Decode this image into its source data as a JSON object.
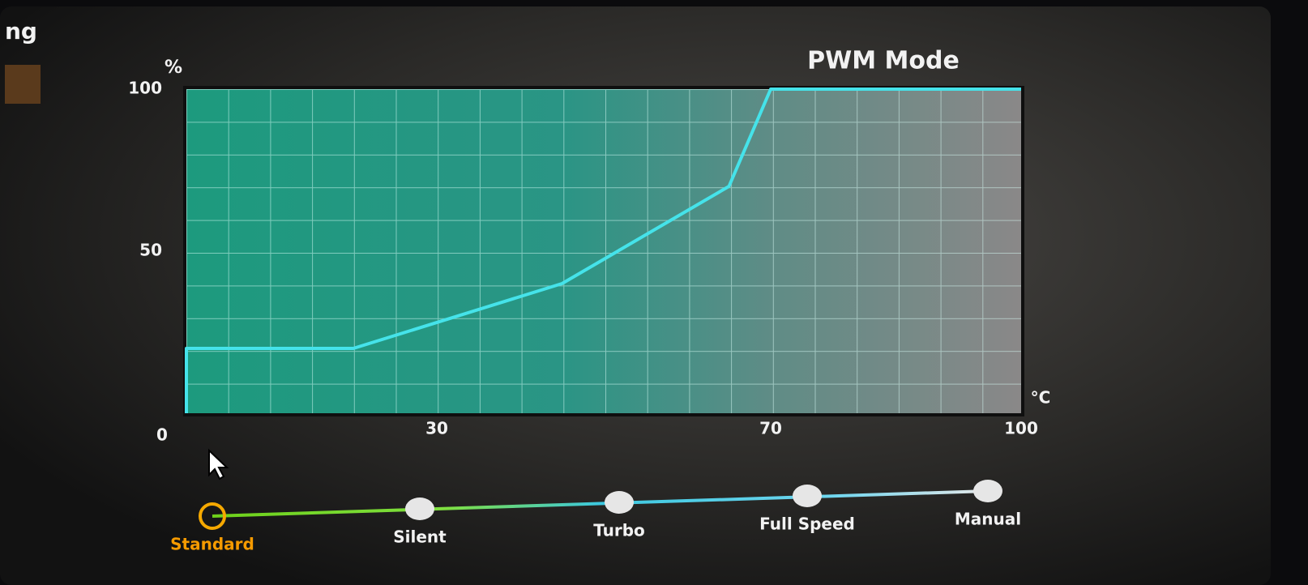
{
  "header": {
    "partial_title": "ng"
  },
  "chart_data": {
    "type": "line",
    "title": "PWM Mode",
    "y_label": "%",
    "x_label": "°C",
    "x": [
      0,
      0,
      20,
      45,
      65,
      70,
      100
    ],
    "values": [
      0,
      20,
      20,
      40,
      70,
      100,
      100
    ],
    "color": "#45e3ea",
    "xlim": [
      0,
      100
    ],
    "ylim": [
      0,
      100
    ],
    "xticks": [
      30,
      70,
      100
    ],
    "yticks": [
      0,
      50,
      100
    ]
  },
  "modes": {
    "items": [
      "Standard",
      "Silent",
      "Turbo",
      "Full Speed",
      "Manual"
    ],
    "selected": "Standard"
  }
}
